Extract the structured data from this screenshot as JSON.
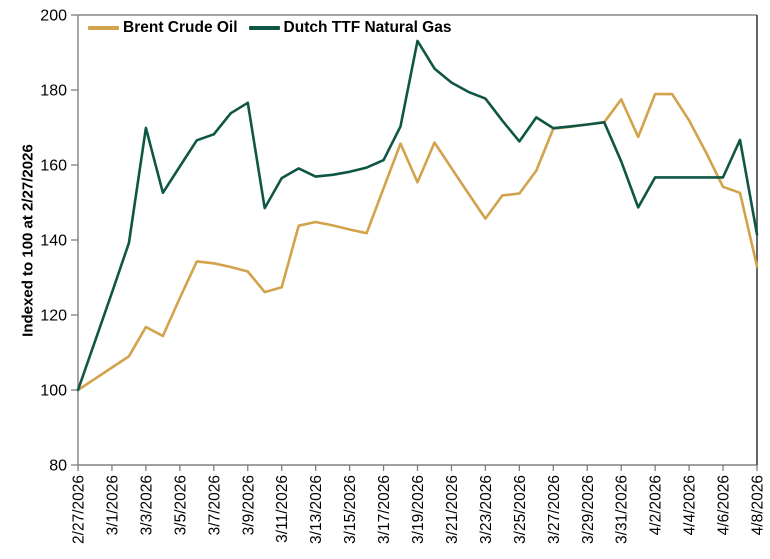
{
  "chart_data": {
    "type": "line",
    "title": "",
    "ylabel": "Indexed to 100 at 2/27/2026",
    "xlabel": "",
    "ylim": [
      80,
      200
    ],
    "yticks": [
      80,
      100,
      120,
      140,
      160,
      180,
      200
    ],
    "grid": false,
    "legend_position": "top-left-inside",
    "x_tick_every": 2,
    "x": [
      "2/27/2026",
      "2/28/2026",
      "3/1/2026",
      "3/2/2026",
      "3/3/2026",
      "3/4/2026",
      "3/5/2026",
      "3/6/2026",
      "3/7/2026",
      "3/8/2026",
      "3/9/2026",
      "3/10/2026",
      "3/11/2026",
      "3/12/2026",
      "3/13/2026",
      "3/14/2026",
      "3/15/2026",
      "3/16/2026",
      "3/17/2026",
      "3/18/2026",
      "3/19/2026",
      "3/20/2026",
      "3/21/2026",
      "3/22/2026",
      "3/23/2026",
      "3/24/2026",
      "3/25/2026",
      "3/26/2026",
      "3/27/2026",
      "3/28/2026",
      "3/29/2026",
      "3/30/2026",
      "3/31/2026",
      "4/1/2026",
      "4/2/2026",
      "4/3/2026",
      "4/4/2026",
      "4/5/2026",
      "4/6/2026",
      "4/7/2026",
      "4/8/2026"
    ],
    "series": [
      {
        "name": "Brent Crude Oil",
        "color": "#D2A24C",
        "values": [
          100,
          103,
          106,
          109,
          116.8,
          114.4,
          124.5,
          134.3,
          133.8,
          132.8,
          131.6,
          126.1,
          127.4,
          143.8,
          144.8,
          143.9,
          142.8,
          141.8,
          153.8,
          165.7,
          155.4,
          166,
          159.2,
          152.4,
          145.7,
          151.9,
          152.4,
          158.5,
          169.7,
          170.2,
          170.8,
          171.4,
          177.5,
          167.5,
          178.9,
          178.9,
          171.9,
          163.3,
          154.2,
          152.6,
          133
        ]
      },
      {
        "name": "Dutch TTF Natural Gas",
        "color": "#105645",
        "values": [
          100,
          113,
          126,
          139.2,
          169.9,
          152.6,
          159.6,
          166.6,
          168.2,
          173.8,
          176.6,
          148.5,
          156.5,
          159.1,
          156.9,
          157.4,
          158.2,
          159.3,
          161.3,
          170.3,
          193.1,
          185.7,
          182,
          179.5,
          177.7,
          171.8,
          166.3,
          172.7,
          169.8,
          170.3,
          170.8,
          171.4,
          161,
          148.7,
          156.7,
          156.7,
          156.7,
          156.7,
          156.7,
          166.7,
          141.5
        ]
      }
    ],
    "axis_colors": {
      "spine": "#808080",
      "right_spine": "#404040",
      "tick": "#808080"
    }
  }
}
